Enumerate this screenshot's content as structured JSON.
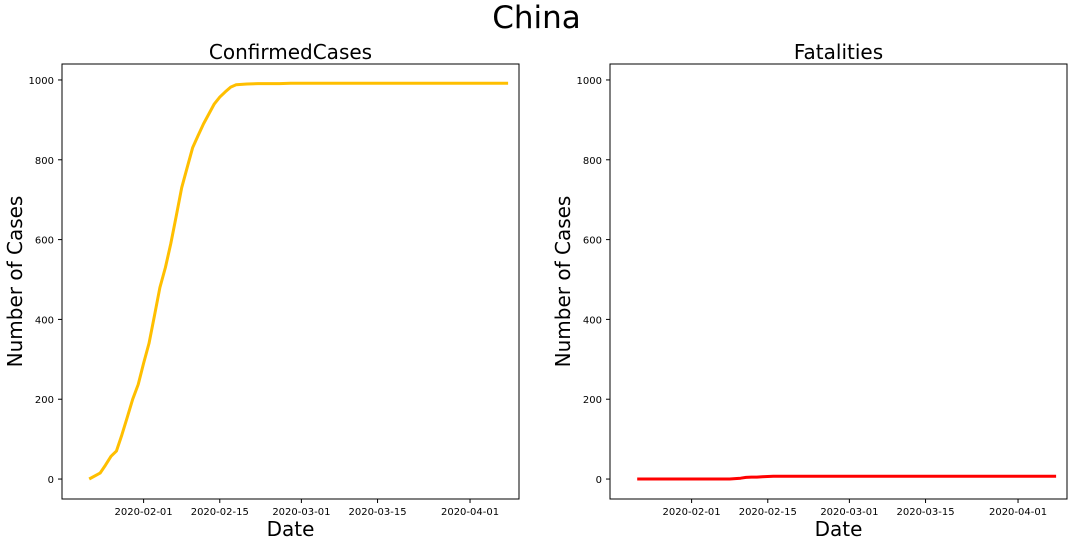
{
  "figure": {
    "title": "China"
  },
  "chart_data": [
    {
      "type": "line",
      "title": "ConfirmedCases",
      "xlabel": "Date",
      "ylabel": "Number of Cases",
      "x_type": "date",
      "xlim": [
        "2020-01-17",
        "2020-04-10"
      ],
      "ylim": [
        -50,
        1040
      ],
      "xticks": [
        "2020-02-01",
        "2020-02-15",
        "2020-03-01",
        "2020-03-15",
        "2020-04-01"
      ],
      "yticks": [
        0,
        200,
        400,
        600,
        800,
        1000
      ],
      "grid": false,
      "color": "#ffbf00",
      "series": [
        {
          "x": [
            "2020-01-22",
            "2020-01-24",
            "2020-01-25",
            "2020-01-26",
            "2020-01-27",
            "2020-01-28",
            "2020-01-29",
            "2020-01-30",
            "2020-01-31",
            "2020-02-01",
            "2020-02-02",
            "2020-02-03",
            "2020-02-04",
            "2020-02-05",
            "2020-02-06",
            "2020-02-07",
            "2020-02-08",
            "2020-02-09",
            "2020-02-10",
            "2020-02-11",
            "2020-02-12",
            "2020-02-13",
            "2020-02-14",
            "2020-02-15",
            "2020-02-16",
            "2020-02-17",
            "2020-02-18",
            "2020-02-20",
            "2020-02-22",
            "2020-02-26",
            "2020-02-28",
            "2020-03-05",
            "2020-03-15",
            "2020-03-25",
            "2020-04-08"
          ],
          "y": [
            0,
            15,
            35,
            57,
            70,
            110,
            155,
            200,
            237,
            290,
            340,
            410,
            480,
            530,
            590,
            660,
            730,
            780,
            830,
            860,
            890,
            915,
            940,
            957,
            970,
            982,
            988,
            990,
            991,
            991,
            992,
            992,
            992,
            992,
            992
          ]
        }
      ]
    },
    {
      "type": "line",
      "title": "Fatalities",
      "xlabel": "Date",
      "ylabel": "Number of Cases",
      "x_type": "date",
      "xlim": [
        "2020-01-17",
        "2020-04-10"
      ],
      "ylim": [
        -50,
        1040
      ],
      "xticks": [
        "2020-02-01",
        "2020-02-15",
        "2020-03-01",
        "2020-03-15",
        "2020-04-01"
      ],
      "yticks": [
        0,
        200,
        400,
        600,
        800,
        1000
      ],
      "grid": false,
      "color": "#ff0000",
      "series": [
        {
          "x": [
            "2020-01-22",
            "2020-02-01",
            "2020-02-08",
            "2020-02-09",
            "2020-02-10",
            "2020-02-11",
            "2020-02-12",
            "2020-02-13",
            "2020-02-14",
            "2020-02-16",
            "2020-03-01",
            "2020-03-15",
            "2020-04-01",
            "2020-04-08"
          ],
          "y": [
            0,
            0,
            0,
            1,
            2,
            4,
            5,
            5,
            6,
            7,
            7,
            7,
            7,
            7
          ]
        }
      ]
    }
  ]
}
